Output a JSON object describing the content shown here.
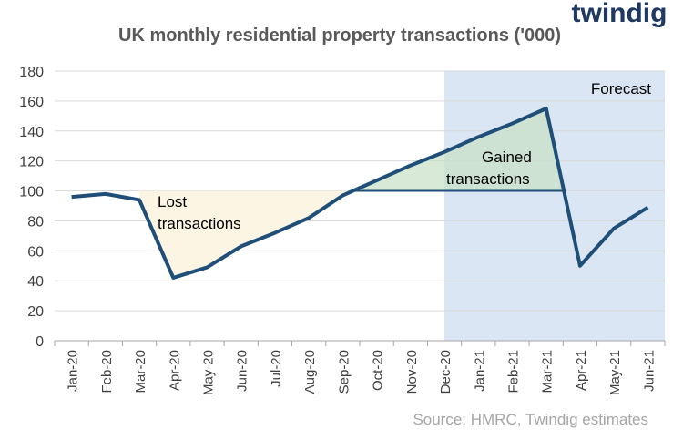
{
  "chart_data": {
    "type": "line",
    "title": "UK monthly residential property transactions ('000)",
    "categories": [
      "Jan-20",
      "Feb-20",
      "Mar-20",
      "Apr-20",
      "May-20",
      "Jun-20",
      "Jul-20",
      "Aug-20",
      "Sep-20",
      "Oct-20",
      "Nov-20",
      "Dec-20",
      "Jan-21",
      "Feb-21",
      "Mar-21",
      "Apr-21",
      "May-21",
      "Jun-21"
    ],
    "values": [
      96,
      98,
      94,
      42,
      49,
      63,
      72,
      82,
      97,
      107,
      117,
      126,
      136,
      145,
      155,
      50,
      75,
      89
    ],
    "color": "#1f4e79",
    "ylim": [
      0,
      180
    ],
    "yticks": [
      0,
      20,
      40,
      60,
      80,
      100,
      120,
      140,
      160,
      180
    ],
    "grid": true,
    "baseline": 100,
    "lost_from_index": 2,
    "forecast_from_index": 11,
    "forecast_label": "Forecast",
    "lost_label": [
      "Lost",
      "transactions"
    ],
    "gained_label": [
      "Gained",
      "transactions"
    ],
    "source": "Source: HMRC, Twindig estimates",
    "logo": "twindig"
  }
}
